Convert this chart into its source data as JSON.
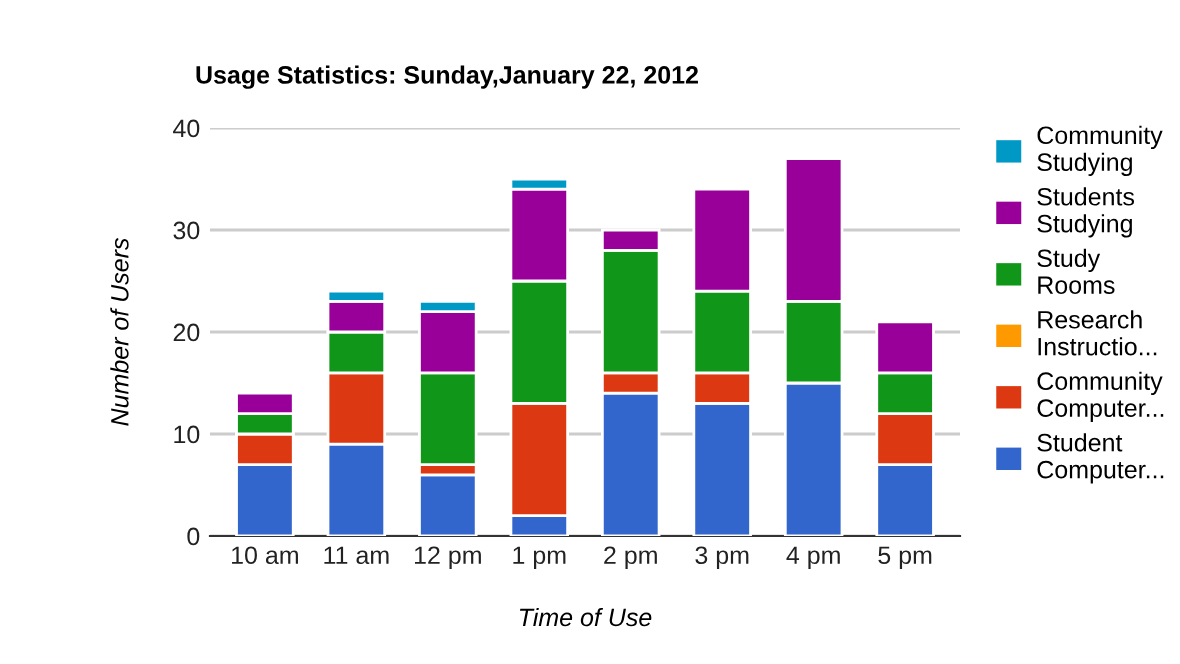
{
  "chart_data": {
    "type": "bar",
    "stacked": true,
    "title": "Usage Statistics: Sunday,January 22, 2012",
    "xlabel": "Time of Use",
    "ylabel": "Number of Users",
    "categories": [
      "10 am",
      "11 am",
      "12 pm",
      "1 pm",
      "2 pm",
      "3 pm",
      "4 pm",
      "5 pm"
    ],
    "series": [
      {
        "name": "Student Computer...",
        "color": "#3366cc",
        "values": [
          7,
          9,
          6,
          2,
          14,
          13,
          15,
          7
        ]
      },
      {
        "name": "Community Computer...",
        "color": "#dc3912",
        "values": [
          3,
          7,
          1,
          11,
          2,
          3,
          0,
          5
        ]
      },
      {
        "name": "Research Instructio...",
        "color": "#ff9900",
        "values": [
          0,
          0,
          0,
          0,
          0,
          0,
          0,
          0
        ]
      },
      {
        "name": "Study Rooms",
        "color": "#109618",
        "values": [
          2,
          4,
          9,
          12,
          12,
          8,
          8,
          4
        ]
      },
      {
        "name": "Students Studying",
        "color": "#990099",
        "values": [
          2,
          3,
          6,
          9,
          2,
          10,
          14,
          5
        ]
      },
      {
        "name": "Community Studying",
        "color": "#0099c6",
        "values": [
          0,
          1,
          1,
          1,
          0,
          0,
          0,
          0
        ]
      }
    ],
    "ylim": [
      0,
      40
    ],
    "yticks": [
      0,
      10,
      20,
      30,
      40
    ],
    "grid": "y",
    "legend": "right"
  }
}
